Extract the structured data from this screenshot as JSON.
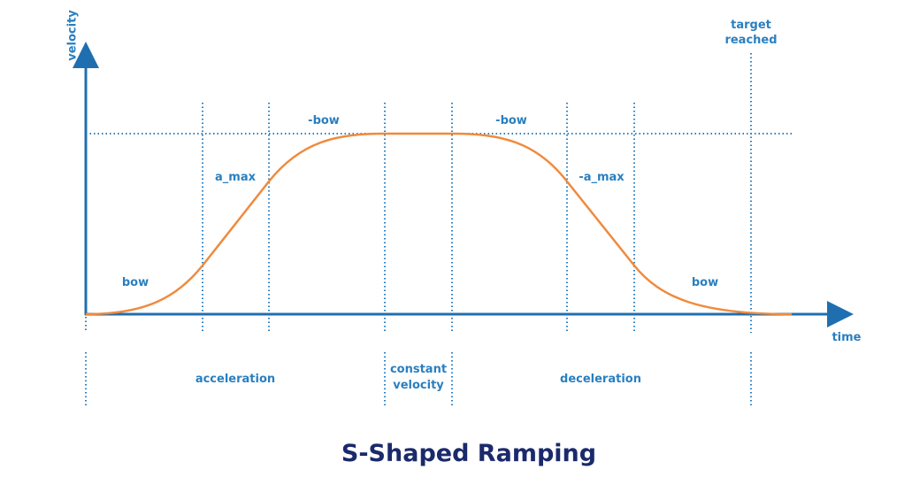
{
  "title": "S-Shaped Ramping",
  "axes": {
    "y_label": "velocity",
    "x_label": "time"
  },
  "curve_labels": {
    "bow_start": "bow",
    "a_max": "a_max",
    "neg_bow_1": "-bow",
    "neg_bow_2": "-bow",
    "neg_a_max": "-a_max",
    "bow_end": "bow"
  },
  "markers": {
    "target": [
      "target",
      "reached"
    ]
  },
  "phases": {
    "acceleration": "acceleration",
    "constant": [
      "constant",
      "velocity"
    ],
    "deceleration": "deceleration"
  },
  "colors": {
    "axis": "#1f6fb0",
    "label": "#2a7fc0",
    "curve": "#f08a3c",
    "title": "#1b2a6b"
  }
}
